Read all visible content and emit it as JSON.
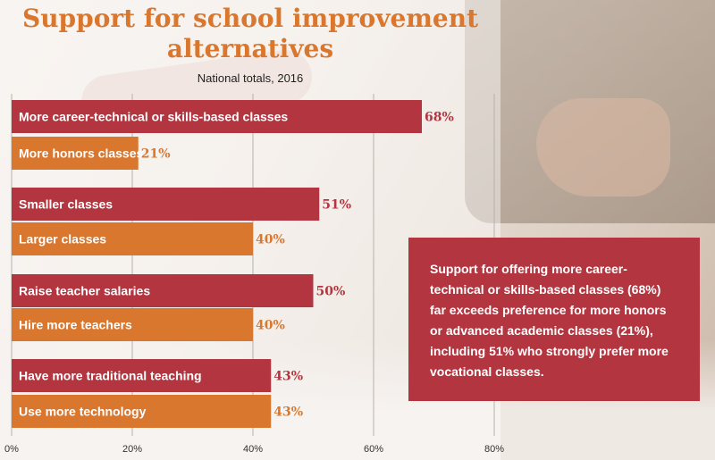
{
  "chart_data": {
    "type": "bar",
    "orientation": "horizontal",
    "title": "Support for school improvement alternatives",
    "subtitle": "National totals, 2016",
    "categories": [
      "More career-technical or skills-based classes",
      "More honors classes",
      "Smaller classes",
      "Larger classes",
      "Raise teacher salaries",
      "Hire more teachers",
      "Have more traditional teaching",
      "Use more technology"
    ],
    "values": [
      68,
      21,
      51,
      40,
      50,
      40,
      43,
      43
    ],
    "value_labels": [
      "68%",
      "21%",
      "51%",
      "40%",
      "50%",
      "40%",
      "43%",
      "43%"
    ],
    "bar_colors": [
      "#b2353f",
      "#d9772f",
      "#b2353f",
      "#d9772f",
      "#b2353f",
      "#d9772f",
      "#b2353f",
      "#d9772f"
    ],
    "xlim": [
      0,
      80
    ],
    "x_ticks": [
      0,
      20,
      40,
      60,
      80
    ],
    "x_tick_labels": [
      "0%",
      "20%",
      "40%",
      "60%",
      "80%"
    ],
    "grid": true,
    "xlabel": "",
    "ylabel": ""
  },
  "callout": {
    "text": "Support for offering more career-technical or skills-based classes (68%) far exceeds preference for more honors or advanced academic classes (21%), including 51% who strongly prefer more vocational classes."
  },
  "colors": {
    "accent_red": "#b2353f",
    "accent_orange": "#d9772f",
    "title_color": "#d9772f"
  }
}
